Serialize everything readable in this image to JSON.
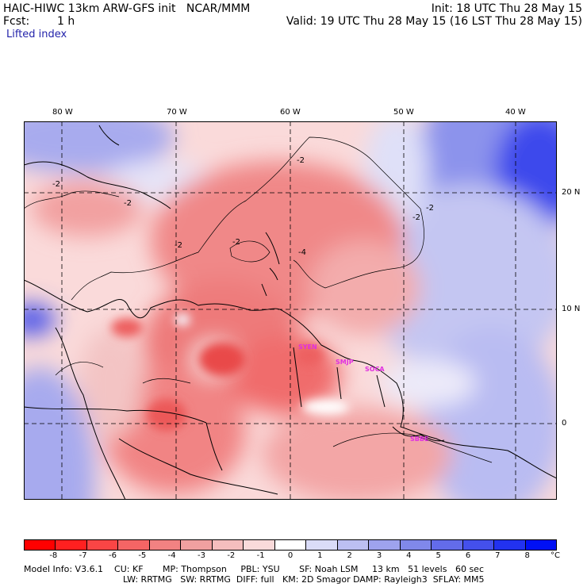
{
  "header": {
    "title_left": "HAIC-HIWC 13km ARW-GFS init   NCAR/MMM",
    "init": "Init: 18 UTC Thu 28 May 15",
    "fcst_label": "Fcst:",
    "fcst_value": "1 h",
    "valid": "Valid: 19 UTC Thu 28 May 15 (16 LST Thu 28 May 15)",
    "field": "Lifted index"
  },
  "map": {
    "lon_labels": [
      "80 W",
      "70 W",
      "60 W",
      "50 W",
      "40 W"
    ],
    "lat_labels": [
      "20 N",
      "10 N",
      "0"
    ],
    "contour_labels": [
      "-2",
      "-2",
      "-2",
      "-2",
      "-2",
      "-4",
      "-2",
      "-2"
    ],
    "station_labels": [
      "SYEN",
      "SMJP",
      "SOCA",
      "SBBE"
    ],
    "station_color": "#e030e0"
  },
  "colorbar": {
    "values": [
      "-8",
      "-7",
      "-6",
      "-5",
      "-4",
      "-3",
      "-2",
      "-1",
      "0",
      "1",
      "2",
      "3",
      "4",
      "5",
      "6",
      "7",
      "8"
    ],
    "unit": "°C",
    "colors": [
      "#ff0000",
      "#ff2020",
      "#fa4545",
      "#f56565",
      "#f28282",
      "#f0a0a0",
      "#f5bebe",
      "#fadada",
      "#ffffff",
      "#dadcf8",
      "#bcbff2",
      "#9ea3ee",
      "#8088ea",
      "#636cea",
      "#4450ec",
      "#2232f0",
      "#0010f5"
    ]
  },
  "footer": {
    "line1": "Model Info: V3.6.1    CU: KF       MP: Thompson     PBL: YSU       SF: Noah LSM     13 km   51 levels   60 sec",
    "line2": "LW: RRTMG   SW: RRTMG  DIFF: full   KM: 2D Smagor DAMP: Rayleigh3  SFLAY: MM5"
  }
}
